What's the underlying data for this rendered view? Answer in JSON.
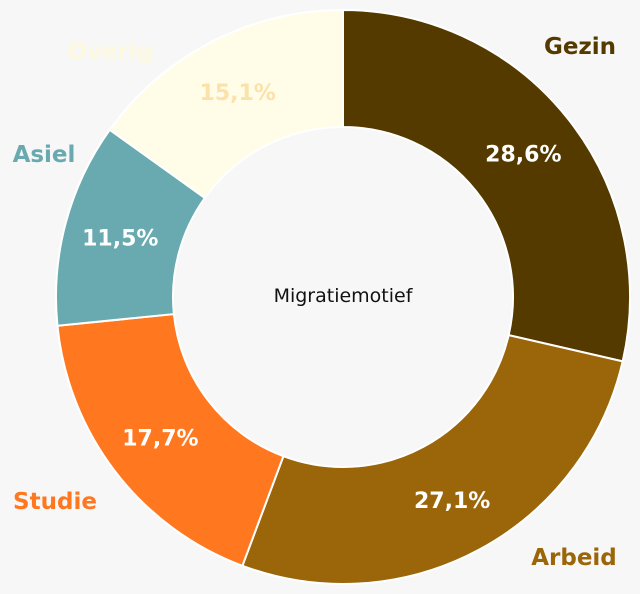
{
  "chart_data": {
    "type": "pie",
    "donut": true,
    "center_label": "Migratiemotief",
    "slices": [
      {
        "label": "Gezin",
        "value": 28.6,
        "value_label": "28,6%",
        "color": "#553a00",
        "value_color": "#ffffff",
        "label_color": "#553a00"
      },
      {
        "label": "Arbeid",
        "value": 27.1,
        "value_label": "27,1%",
        "color": "#9a6609",
        "value_color": "#ffffff",
        "label_color": "#9a6609"
      },
      {
        "label": "Studie",
        "value": 17.7,
        "value_label": "17,7%",
        "color": "#ff7820",
        "value_color": "#ffffff",
        "label_color": "#ff7820"
      },
      {
        "label": "Asiel",
        "value": 11.5,
        "value_label": "11,5%",
        "color": "#68aab0",
        "value_color": "#ffffff",
        "label_color": "#68aab0"
      },
      {
        "label": "Overig",
        "value": 15.1,
        "value_label": "15,1%",
        "color": "#fffde8",
        "value_color": "#fbe2ab",
        "label_color": "#fdf8e0"
      }
    ]
  }
}
